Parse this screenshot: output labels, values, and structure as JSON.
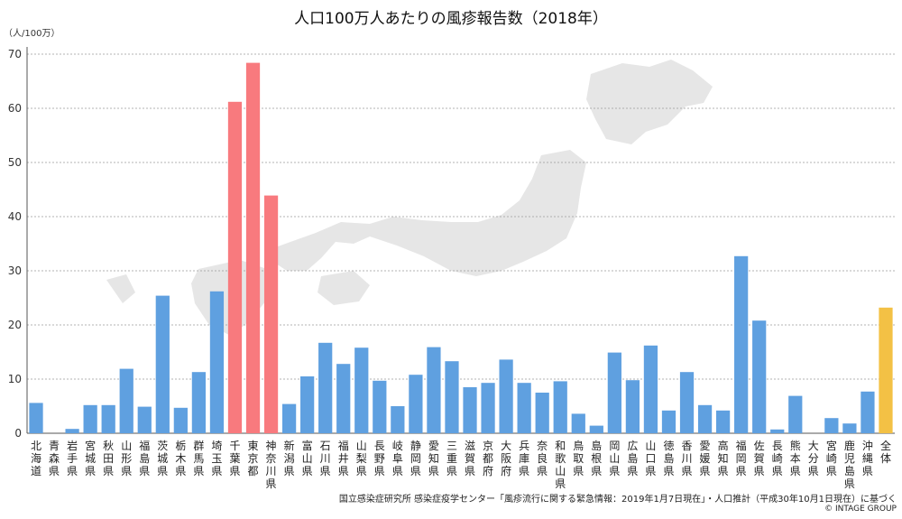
{
  "chart_data": {
    "type": "bar",
    "title": "人口100万人あたりの風疹報告数（2018年）",
    "ylabel": "（人/100万）",
    "ylim": [
      0,
      70
    ],
    "yticks": [
      0,
      10,
      20,
      30,
      40,
      50,
      60,
      70
    ],
    "grid": true,
    "categories": [
      "北海道",
      "青森県",
      "岩手県",
      "宮城県",
      "秋田県",
      "山形県",
      "福島県",
      "茨城県",
      "栃木県",
      "群馬県",
      "埼玉県",
      "千葉県",
      "東京都",
      "神奈川県",
      "新潟県",
      "富山県",
      "石川県",
      "福井県",
      "山梨県",
      "長野県",
      "岐阜県",
      "静岡県",
      "愛知県",
      "三重県",
      "滋賀県",
      "京都府",
      "大阪府",
      "兵庫県",
      "奈良県",
      "和歌山県",
      "鳥取県",
      "島根県",
      "岡山県",
      "広島県",
      "山口県",
      "徳島県",
      "香川県",
      "愛媛県",
      "高知県",
      "福岡県",
      "佐賀県",
      "長崎県",
      "熊本県",
      "大分県",
      "宮崎県",
      "鹿児島県",
      "沖縄県",
      "全体"
    ],
    "values": [
      5.6,
      0,
      0.8,
      5.2,
      5.2,
      11.9,
      4.9,
      25.4,
      4.7,
      11.3,
      26.2,
      61.2,
      68.4,
      43.9,
      5.4,
      10.5,
      16.7,
      12.8,
      15.8,
      9.7,
      5.0,
      10.8,
      15.9,
      13.3,
      8.5,
      9.3,
      13.6,
      9.3,
      7.5,
      9.6,
      3.6,
      1.4,
      14.9,
      9.8,
      16.2,
      4.2,
      11.3,
      5.2,
      4.2,
      32.7,
      20.8,
      0.7,
      6.9,
      0,
      2.8,
      1.8,
      7.7,
      23.2
    ],
    "colors": {
      "default": "#5fa0e0",
      "highlight": "#f87a7e",
      "total": "#f3c145",
      "grid": "#9a9a9a",
      "map": "#e6e6e6"
    },
    "highlight_categories": [
      "千葉県",
      "東京都",
      "神奈川県"
    ],
    "total_category": "全体"
  },
  "footer": {
    "source": "国立感染症研究所 感染症疫学センター「風疹流行に関する緊急情報：2019年1月7日現在」・人口推計（平成30年10月1日現在）に基づく",
    "copyright": "© INTAGE GROUP"
  }
}
